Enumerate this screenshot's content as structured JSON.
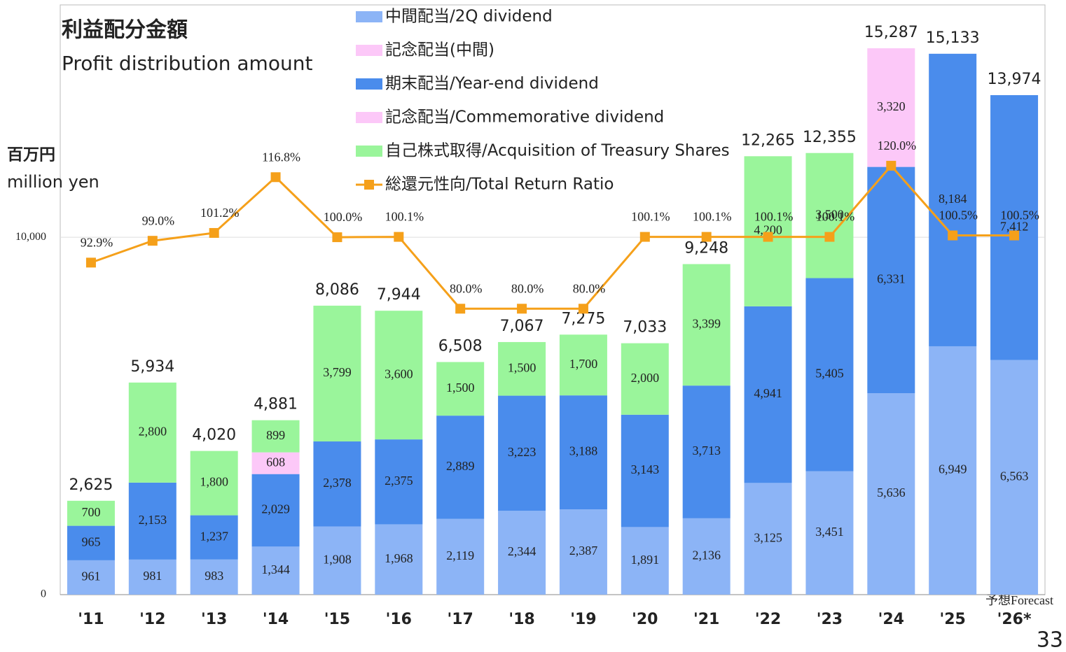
{
  "chart_data": {
    "type": "bar",
    "title": "利益配分金額",
    "subtitle": "Profit distribution amount",
    "y_label": "百万円",
    "y_label_en": "million yen",
    "annotation": "予想Forecast",
    "page_number": "33",
    "categories": [
      "'11",
      "'12",
      "'13",
      "'14",
      "'15",
      "'16",
      "'17",
      "'18",
      "'19",
      "'20",
      "'21",
      "'22",
      "'23",
      "'24",
      "'25",
      "'26*"
    ],
    "ylim": [
      0,
      16500
    ],
    "yticks": [
      0,
      {
        "value": 10000,
        "label": "10,000"
      }
    ],
    "y2lim": [
      0,
      165
    ],
    "grid": true,
    "legend": "top",
    "series": [
      {
        "name": "中間配当/2Q dividend",
        "color": "#8cb4f6",
        "values": [
          961,
          981,
          983,
          1344,
          1908,
          1968,
          2119,
          2344,
          2387,
          1891,
          2136,
          3125,
          3451,
          5636,
          6949,
          6563
        ],
        "value_labels": [
          "961",
          "981",
          "983",
          "1,344",
          "1,908",
          "1,968",
          "2,119",
          "2,344",
          "2,387",
          "1,891",
          "2,136",
          "3,125",
          "3,451",
          "5,636",
          "6,949",
          "6,563"
        ]
      },
      {
        "name": "記念配当(中間)",
        "color": "#fcc8f8",
        "values": [
          null,
          null,
          null,
          608,
          null,
          null,
          null,
          null,
          null,
          null,
          null,
          null,
          null,
          null,
          null,
          null
        ],
        "value_labels": [
          null,
          null,
          null,
          "608",
          null,
          null,
          null,
          null,
          null,
          null,
          null,
          null,
          null,
          null,
          null,
          null
        ]
      },
      {
        "name": "期末配当/Year-end dividend",
        "color": "#4a8cec",
        "values": [
          965,
          2153,
          1237,
          2029,
          2378,
          2375,
          2889,
          3223,
          3188,
          3143,
          3713,
          4941,
          5405,
          6331,
          8184,
          7412
        ],
        "value_labels": [
          "965",
          "2,153",
          "1,237",
          "2,029",
          "2,378",
          "2,375",
          "2,889",
          "3,223",
          "3,188",
          "3,143",
          "3,713",
          "4,941",
          "5,405",
          "6,331",
          "8,184",
          "7,412"
        ]
      },
      {
        "name": "記念配当/Commemorative dividend",
        "color": "#fcc8f8",
        "values": [
          null,
          null,
          null,
          null,
          null,
          null,
          null,
          null,
          null,
          null,
          null,
          null,
          null,
          3320,
          null,
          null
        ],
        "value_labels": [
          null,
          null,
          null,
          null,
          null,
          null,
          null,
          null,
          null,
          null,
          null,
          null,
          null,
          "3,320",
          null,
          null
        ]
      },
      {
        "name": "自己株式取得/Acquisition of Treasury Shares",
        "color": "#9af59b",
        "values": [
          700,
          2800,
          1800,
          899,
          3799,
          3600,
          1500,
          1500,
          1700,
          2000,
          3399,
          4200,
          3500,
          null,
          null,
          null
        ],
        "value_labels": [
          "700",
          "2,800",
          "1,800",
          "899",
          "3,799",
          "3,600",
          "1,500",
          "1,500",
          "1,700",
          "2,000",
          "3,399",
          "4,200",
          "3,500",
          null,
          null,
          null
        ]
      },
      {
        "name": "総還元性向/Total Return Ratio",
        "color": "#f5a01a",
        "type": "line",
        "axis": "y2",
        "values": [
          92.9,
          99.0,
          101.2,
          116.8,
          100.0,
          100.1,
          80.0,
          80.0,
          80.0,
          100.1,
          100.1,
          100.1,
          100.1,
          120.0,
          100.5,
          100.5
        ],
        "value_labels": [
          "92.9%",
          "99.0%",
          "101.2%",
          "116.8%",
          "100.0%",
          "100.1%",
          "80.0%",
          "80.0%",
          "80.0%",
          "100.1%",
          "100.1%",
          "100.1%",
          "100.1%",
          "120.0%",
          "100.5%",
          "100.5%"
        ]
      }
    ],
    "totals": {
      "values": [
        2625,
        5934,
        4020,
        4881,
        8086,
        7944,
        6508,
        7067,
        7275,
        7033,
        9248,
        12265,
        12355,
        15287,
        15133,
        13974
      ],
      "value_labels": [
        "2,625",
        "5,934",
        "4,020",
        "4,881",
        "8,086",
        "7,944",
        "6,508",
        "7,067",
        "7,275",
        "7,033",
        "9,248",
        "12,265",
        "12,355",
        "15,287",
        "15,133",
        "13,974"
      ]
    }
  }
}
